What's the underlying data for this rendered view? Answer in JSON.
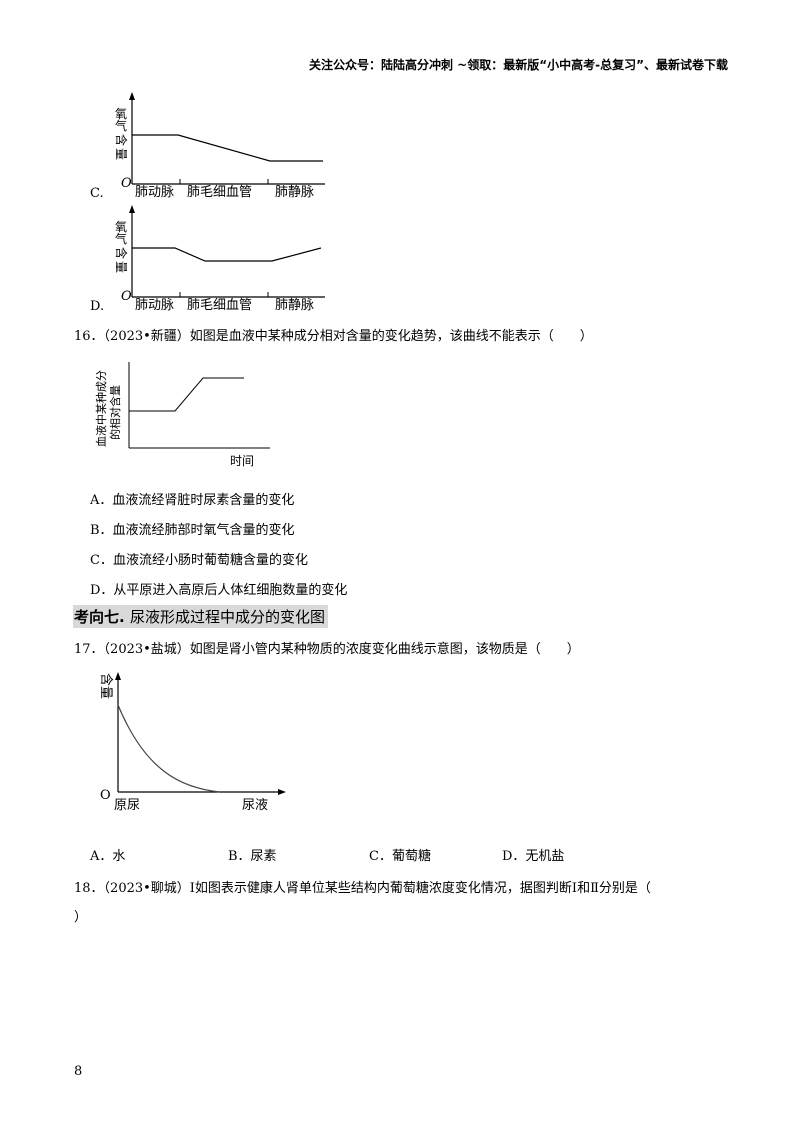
{
  "header": {
    "text": "关注公众号：陆陆高分冲刺 ~领取：最新版“小中高考-总复习”、最新试卷下载"
  },
  "graph_c": {
    "option_label": "C.",
    "y_label_chars": [
      "氧",
      "气",
      "含",
      "量"
    ],
    "origin": "O",
    "x_labels": [
      "肺动脉",
      "肺毛细血管",
      "肺静脉"
    ]
  },
  "graph_d": {
    "option_label": "D.",
    "y_label_chars": [
      "氧",
      "气",
      "含",
      "量"
    ],
    "origin": "O",
    "x_labels": [
      "肺动脉",
      "肺毛细血管",
      "肺静脉"
    ]
  },
  "q16": {
    "stem": "16．（2023•新疆）如图是血液中某种成分相对含量的变化趋势，该曲线不能表示（　　）",
    "graph": {
      "y_label_line1": "血液中某种成分",
      "y_label_line2": "的相对含量",
      "x_label": "时间"
    },
    "options": [
      "A．血液流经肾脏时尿素含量的变化",
      "B．血液流经肺部时氧气含量的变化",
      "C．血液流经小肠时葡萄糖含量的变化",
      "D．从平原进入高原后人体红细胞数量的变化"
    ]
  },
  "section": {
    "prefix": "考向七.",
    "title": "尿液形成过程中成分的变化图"
  },
  "q17": {
    "stem": "17．（2023•盐城）如图是肾小管内某种物质的浓度变化曲线示意图，该物质是（　　）",
    "graph": {
      "y_label_chars": [
        "含",
        "量"
      ],
      "origin": "O",
      "x_start": "原尿",
      "x_end": "尿液"
    },
    "options": [
      "A．水",
      "B．尿素",
      "C．葡萄糖",
      "D．无机盐"
    ]
  },
  "q18": {
    "stem_line1": "18．（2023•聊城）Ⅰ如图表示健康人肾单位某些结构内葡萄糖浓度变化情况，据图判断Ⅰ和Ⅱ分别是（",
    "stem_line2": "）"
  },
  "page_number": "8"
}
